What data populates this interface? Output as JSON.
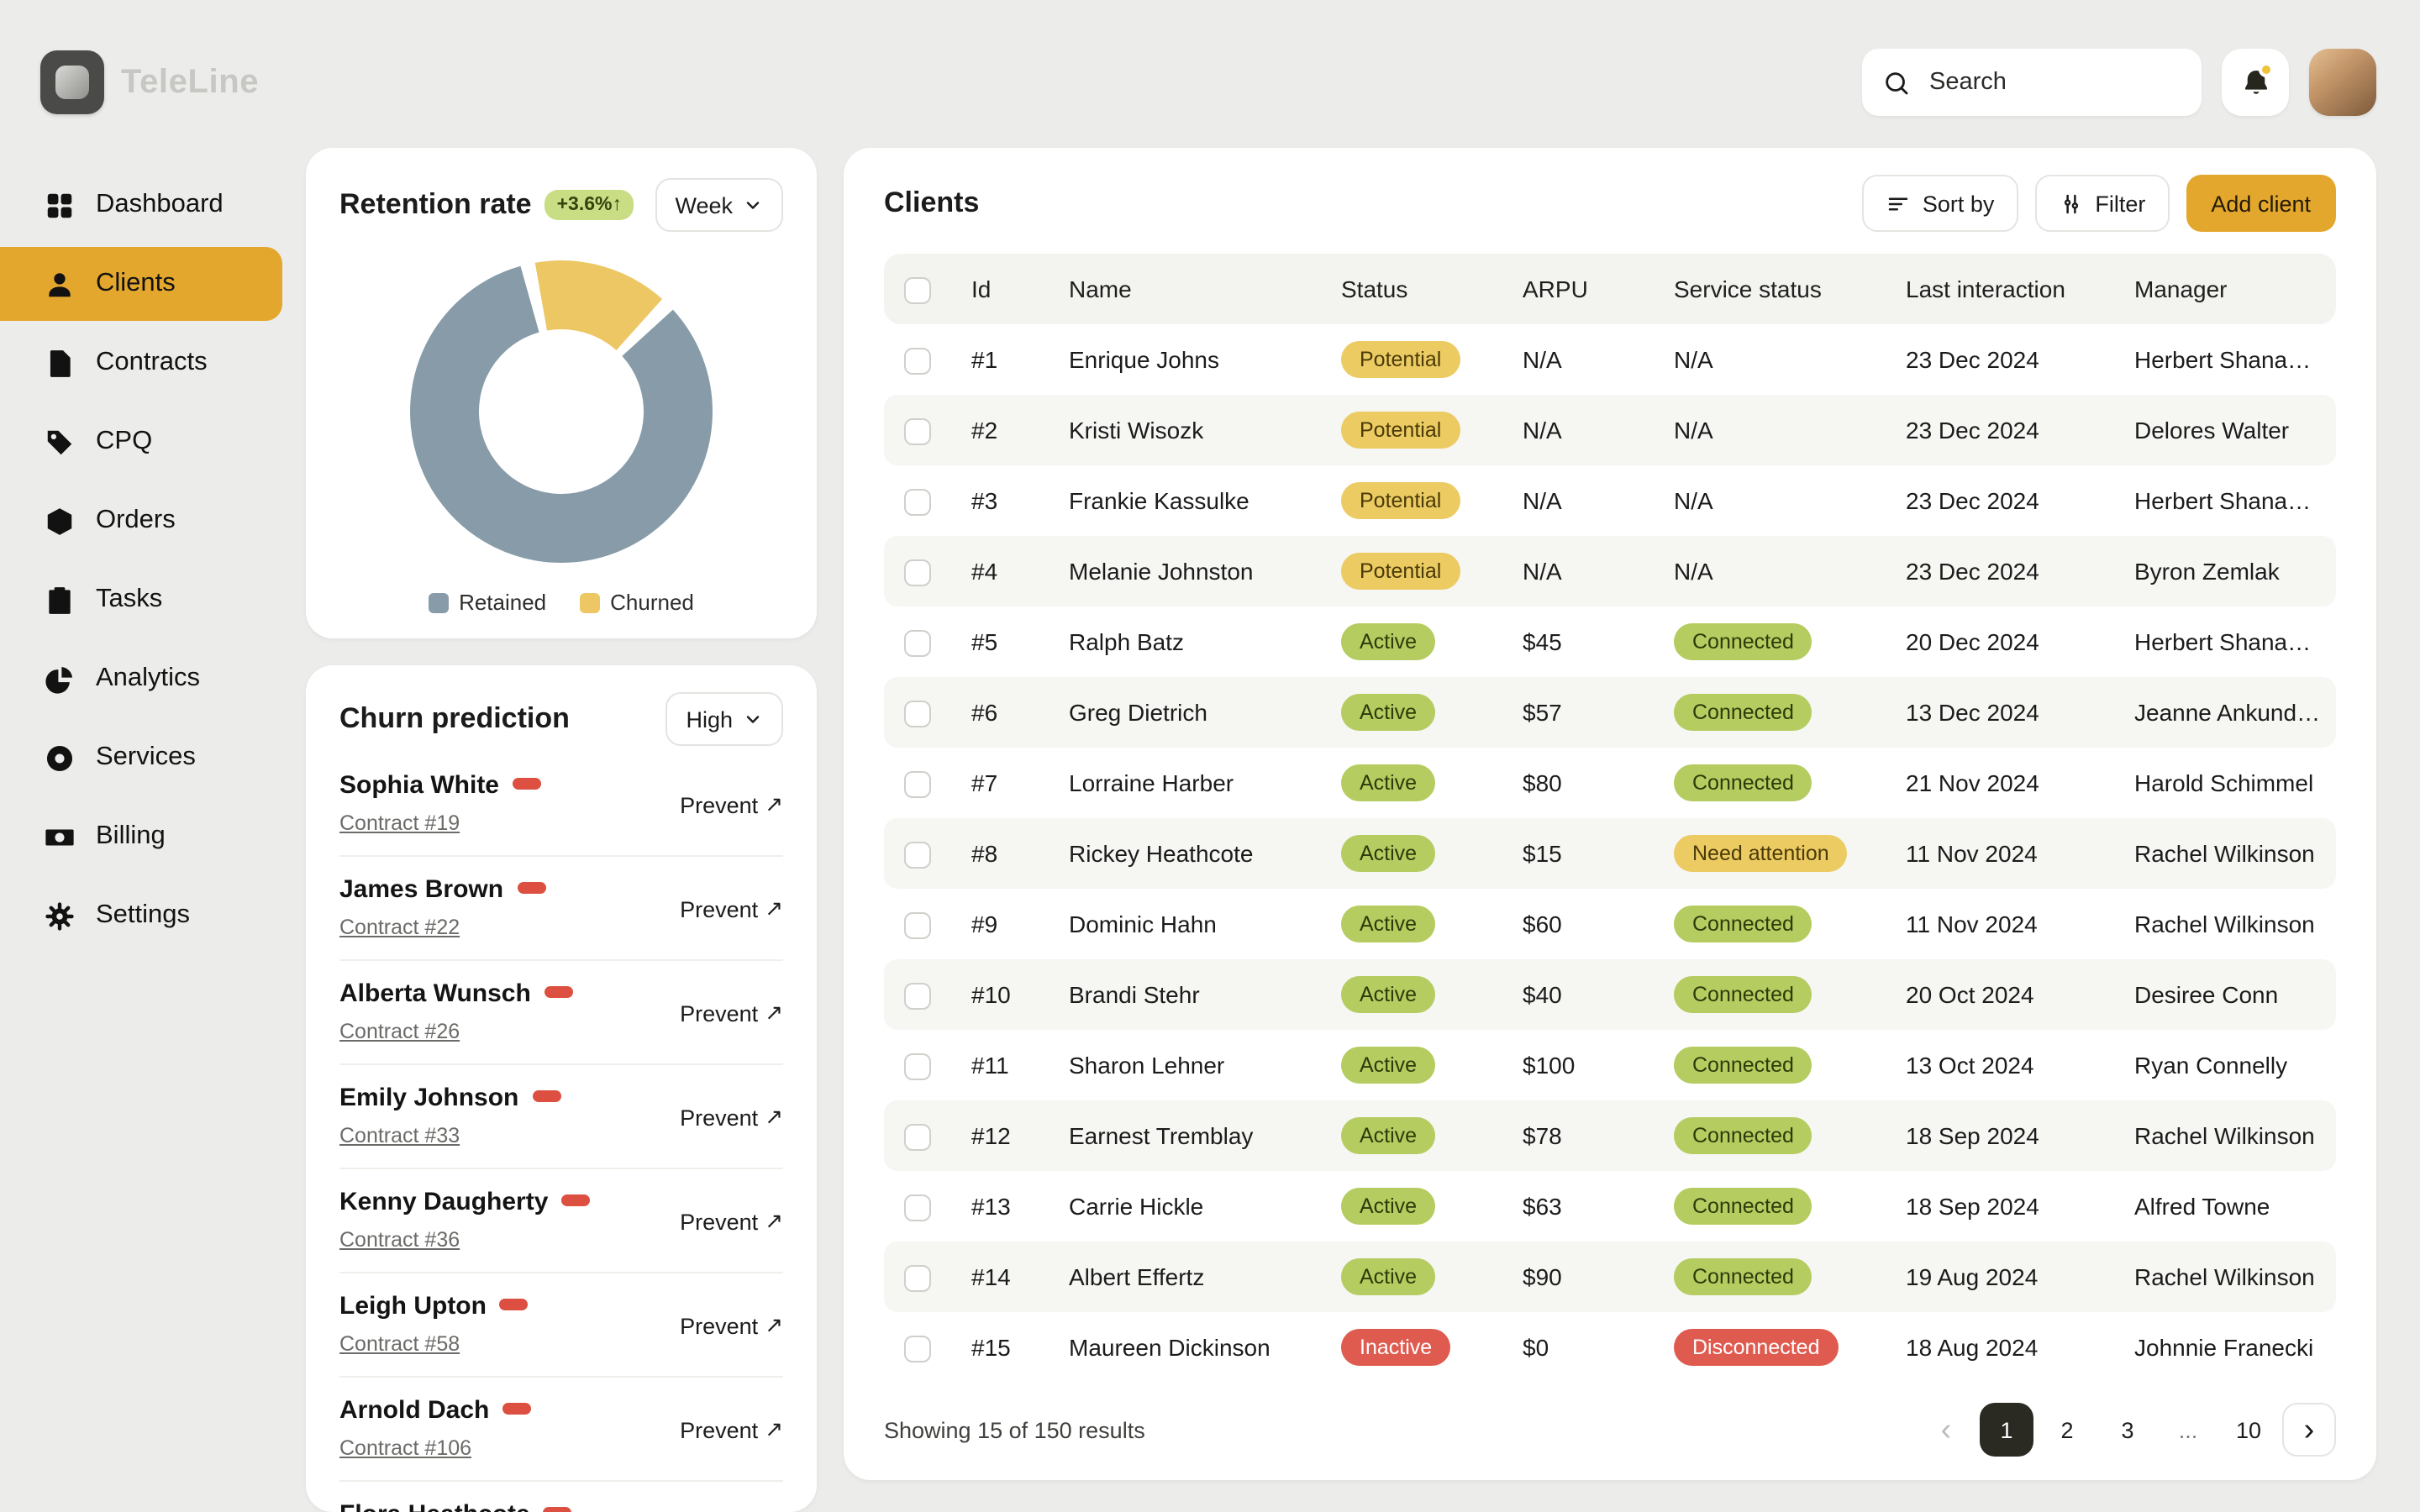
{
  "brand": {
    "name": "TeleLine"
  },
  "topbar": {
    "search_placeholder": "Search"
  },
  "colors": {
    "accent": "#E4A72E",
    "badge_ok": "#B5CC60",
    "badge_warn": "#ECCB63",
    "badge_danger": "#E05B4F",
    "risk_pill": "#DC4F41"
  },
  "sidebar": {
    "items": [
      {
        "label": "Dashboard",
        "icon": "dashboard-icon",
        "active": false
      },
      {
        "label": "Clients",
        "icon": "clients-icon",
        "active": true
      },
      {
        "label": "Contracts",
        "icon": "contracts-icon",
        "active": false
      },
      {
        "label": "CPQ",
        "icon": "cpq-icon",
        "active": false
      },
      {
        "label": "Orders",
        "icon": "orders-icon",
        "active": false
      },
      {
        "label": "Tasks",
        "icon": "tasks-icon",
        "active": false
      },
      {
        "label": "Analytics",
        "icon": "analytics-icon",
        "active": false
      },
      {
        "label": "Services",
        "icon": "services-icon",
        "active": false
      },
      {
        "label": "Billing",
        "icon": "billing-icon",
        "active": false
      },
      {
        "label": "Settings",
        "icon": "settings-icon",
        "active": false
      }
    ]
  },
  "retention": {
    "title": "Retention rate",
    "delta": "+3.6%↑",
    "period": "Week"
  },
  "chart_data": {
    "type": "pie",
    "title": "Retention rate",
    "labels": [
      "Retained",
      "Churned"
    ],
    "values": [
      84,
      16
    ],
    "colors": [
      "#879BA8",
      "#ECC764"
    ],
    "donut": true,
    "legend_position": "bottom"
  },
  "churn": {
    "title": "Churn prediction",
    "level": "High",
    "action_label": "Prevent",
    "action_arrow": "↗",
    "items": [
      {
        "name": "Sophia White",
        "contract": "Contract #19"
      },
      {
        "name": "James Brown",
        "contract": "Contract #22"
      },
      {
        "name": "Alberta Wunsch",
        "contract": "Contract #26"
      },
      {
        "name": "Emily Johnson",
        "contract": "Contract #33"
      },
      {
        "name": "Kenny Daugherty",
        "contract": "Contract #36"
      },
      {
        "name": "Leigh Upton",
        "contract": "Contract #58"
      },
      {
        "name": "Arnold Dach",
        "contract": "Contract #106"
      },
      {
        "name": "Flora Heathcote",
        "contract": ""
      }
    ]
  },
  "clients": {
    "title": "Clients",
    "sort_label": "Sort by",
    "filter_label": "Filter",
    "add_label": "Add client",
    "columns": [
      "Id",
      "Name",
      "Status",
      "ARPU",
      "Service status",
      "Last interaction",
      "Manager"
    ],
    "rows": [
      {
        "id": "#1",
        "name": "Enrique Johns",
        "status": "Potential",
        "status_type": "warn",
        "arpu": "N/A",
        "service": "N/A",
        "service_type": "plain",
        "last": "23 Dec 2024",
        "manager": "Herbert Shanahan"
      },
      {
        "id": "#2",
        "name": "Kristi Wisozk",
        "status": "Potential",
        "status_type": "warn",
        "arpu": "N/A",
        "service": "N/A",
        "service_type": "plain",
        "last": "23 Dec 2024",
        "manager": "Delores Walter"
      },
      {
        "id": "#3",
        "name": "Frankie Kassulke",
        "status": "Potential",
        "status_type": "warn",
        "arpu": "N/A",
        "service": "N/A",
        "service_type": "plain",
        "last": "23 Dec 2024",
        "manager": "Herbert Shanahan"
      },
      {
        "id": "#4",
        "name": "Melanie Johnston",
        "status": "Potential",
        "status_type": "warn",
        "arpu": "N/A",
        "service": "N/A",
        "service_type": "plain",
        "last": "23 Dec 2024",
        "manager": "Byron Zemlak"
      },
      {
        "id": "#5",
        "name": "Ralph Batz",
        "status": "Active",
        "status_type": "ok",
        "arpu": "$45",
        "service": "Connected",
        "service_type": "ok",
        "last": "20 Dec 2024",
        "manager": "Herbert Shanahan"
      },
      {
        "id": "#6",
        "name": "Greg Dietrich",
        "status": "Active",
        "status_type": "ok",
        "arpu": "$57",
        "service": "Connected",
        "service_type": "ok",
        "last": "13 Dec 2024",
        "manager": "Jeanne Ankunding"
      },
      {
        "id": "#7",
        "name": "Lorraine Harber",
        "status": "Active",
        "status_type": "ok",
        "arpu": "$80",
        "service": "Connected",
        "service_type": "ok",
        "last": "21 Nov 2024",
        "manager": "Harold Schimmel"
      },
      {
        "id": "#8",
        "name": "Rickey Heathcote",
        "status": "Active",
        "status_type": "ok",
        "arpu": "$15",
        "service": "Need attention",
        "service_type": "warn",
        "last": "11 Nov 2024",
        "manager": "Rachel Wilkinson"
      },
      {
        "id": "#9",
        "name": "Dominic Hahn",
        "status": "Active",
        "status_type": "ok",
        "arpu": "$60",
        "service": "Connected",
        "service_type": "ok",
        "last": "11 Nov 2024",
        "manager": "Rachel Wilkinson"
      },
      {
        "id": "#10",
        "name": "Brandi Stehr",
        "status": "Active",
        "status_type": "ok",
        "arpu": "$40",
        "service": "Connected",
        "service_type": "ok",
        "last": "20 Oct 2024",
        "manager": "Desiree Conn"
      },
      {
        "id": "#11",
        "name": "Sharon Lehner",
        "status": "Active",
        "status_type": "ok",
        "arpu": "$100",
        "service": "Connected",
        "service_type": "ok",
        "last": "13 Oct 2024",
        "manager": "Ryan Connelly"
      },
      {
        "id": "#12",
        "name": "Earnest Tremblay",
        "status": "Active",
        "status_type": "ok",
        "arpu": "$78",
        "service": "Connected",
        "service_type": "ok",
        "last": "18 Sep 2024",
        "manager": "Rachel Wilkinson"
      },
      {
        "id": "#13",
        "name": "Carrie Hickle",
        "status": "Active",
        "status_type": "ok",
        "arpu": "$63",
        "service": "Connected",
        "service_type": "ok",
        "last": "18 Sep 2024",
        "manager": "Alfred Towne"
      },
      {
        "id": "#14",
        "name": "Albert Effertz",
        "status": "Active",
        "status_type": "ok",
        "arpu": "$90",
        "service": "Connected",
        "service_type": "ok",
        "last": "19 Aug 2024",
        "manager": "Rachel Wilkinson"
      },
      {
        "id": "#15",
        "name": "Maureen Dickinson",
        "status": "Inactive",
        "status_type": "danger",
        "arpu": "$0",
        "service": "Disconnected",
        "service_type": "danger",
        "last": "18 Aug 2024",
        "manager": "Johnnie Franecki"
      }
    ],
    "footer": {
      "summary": "Showing 15 of 150 results",
      "prev": "‹",
      "next": "›",
      "pages": [
        {
          "label": "1",
          "cls": "current"
        },
        {
          "label": "2",
          "cls": ""
        },
        {
          "label": "3",
          "cls": ""
        },
        {
          "label": "...",
          "cls": "dots"
        },
        {
          "label": "10",
          "cls": ""
        }
      ]
    }
  }
}
